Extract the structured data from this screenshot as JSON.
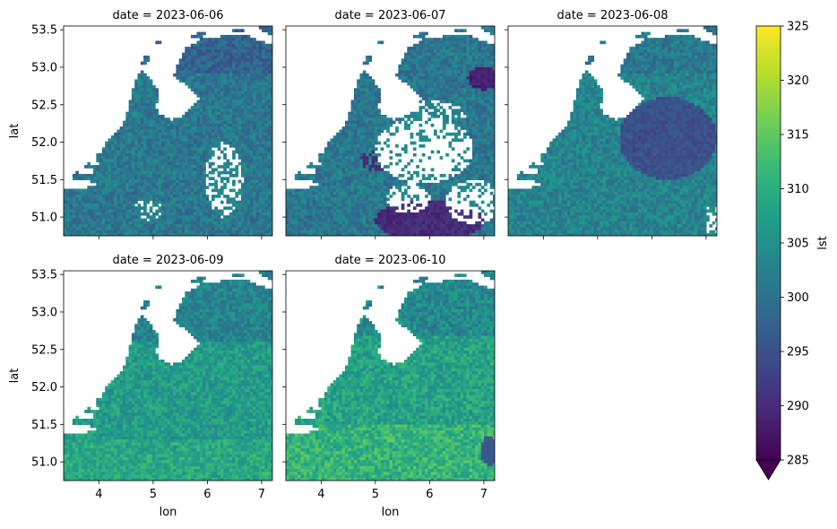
{
  "chart_data": {
    "type": "heatmap",
    "facet_by": "date",
    "panels": [
      {
        "title": "date = 2023-06-06",
        "date": "2023-06-06",
        "cloud_mask": "scattered",
        "base_lst": 301
      },
      {
        "title": "date = 2023-06-07",
        "date": "2023-06-07",
        "cloud_mask": "large gaps south-east; cold patches",
        "base_lst": 301
      },
      {
        "title": "date = 2023-06-08",
        "date": "2023-06-08",
        "cloud_mask": "mostly clear; cool patch east",
        "base_lst": 303
      },
      {
        "title": "date = 2023-06-09",
        "date": "2023-06-09",
        "cloud_mask": "clear",
        "base_lst": 307
      },
      {
        "title": "date = 2023-06-10",
        "date": "2023-06-10",
        "cloud_mask": "clear",
        "base_lst": 308
      }
    ],
    "xlabel": "lon",
    "ylabel": "lat",
    "xlim": [
      3.35,
      7.2
    ],
    "ylim": [
      50.75,
      53.55
    ],
    "xticks": [
      4,
      5,
      6,
      7
    ],
    "yticks": [
      51.0,
      51.5,
      52.0,
      52.5,
      53.0,
      53.5
    ],
    "xtick_labels": [
      "4",
      "5",
      "6",
      "7"
    ],
    "ytick_labels": [
      "51.0",
      "51.5",
      "52.0",
      "52.5",
      "53.0",
      "53.5"
    ],
    "colorbar": {
      "label": "lst",
      "min": 285,
      "max": 325,
      "ticks": [
        285,
        290,
        295,
        300,
        305,
        310,
        315,
        320,
        325
      ],
      "tick_labels": [
        "285",
        "290",
        "295",
        "300",
        "305",
        "310",
        "315",
        "320",
        "325"
      ],
      "extend": "min",
      "colormap": "viridis"
    },
    "colors": {
      "viridis": [
        "#440154",
        "#482878",
        "#3e4989",
        "#31688e",
        "#26828e",
        "#1f9e89",
        "#35b779",
        "#6ece58",
        "#b5de2b",
        "#fde725"
      ],
      "nodata": "#ffffff"
    },
    "grid": false
  }
}
